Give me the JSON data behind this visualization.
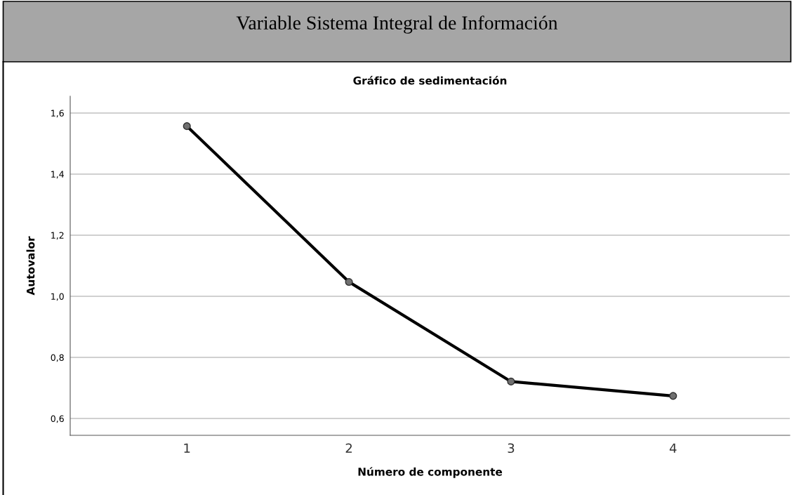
{
  "chart_data": {
    "type": "line",
    "title": "Variable Sistema Integral de Información",
    "subtitle": "Gráfico de sedimentación",
    "xlabel": "Número de componente",
    "ylabel": "Autovalor",
    "x": [
      1,
      2,
      3,
      4
    ],
    "series": [
      {
        "color": "#000000",
        "values": [
          1.557,
          1.047,
          0.721,
          0.674
        ]
      }
    ],
    "xlim": [
      0.28,
      4.72
    ],
    "xticks": [
      1,
      2,
      3,
      4
    ],
    "ylim": [
      0.545,
      1.655
    ],
    "yticks": [
      {
        "value": 0.6,
        "label": "0,6"
      },
      {
        "value": 0.8,
        "label": "0,8"
      },
      {
        "value": 1.0,
        "label": "1,0"
      },
      {
        "value": 1.2,
        "label": "1,2"
      },
      {
        "value": 1.4,
        "label": "1,4"
      },
      {
        "value": 1.6,
        "label": "1,6"
      }
    ],
    "grid": "y",
    "marker": "circle",
    "line_style": "solid",
    "legend": false
  }
}
